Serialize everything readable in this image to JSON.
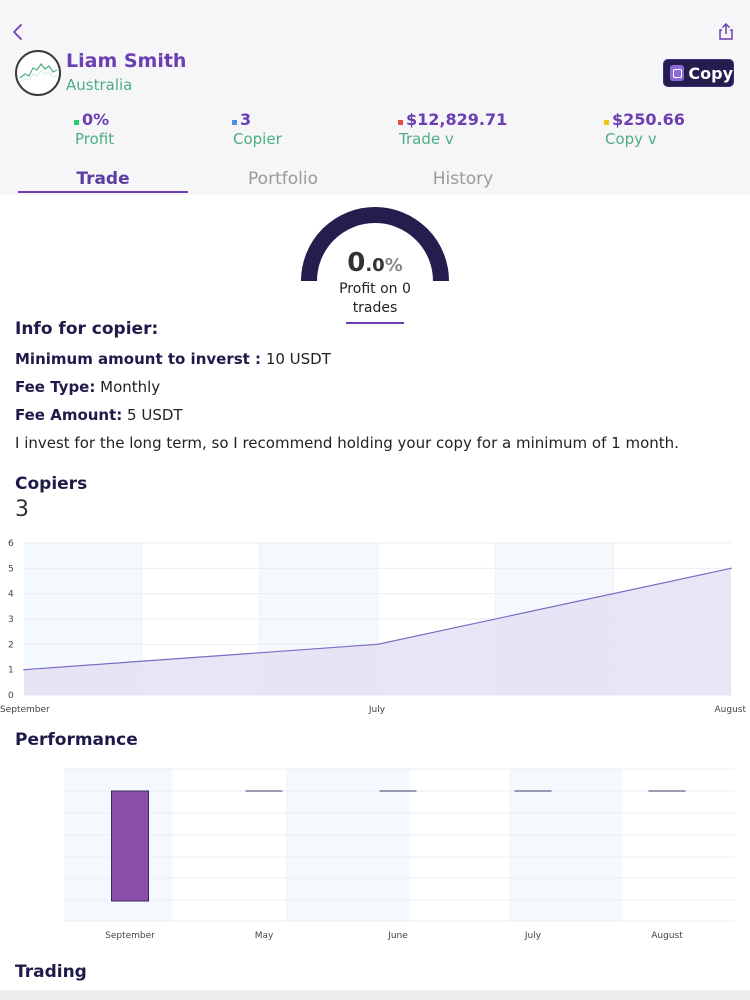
{
  "profile": {
    "name": "Liam Smith",
    "country": "Australia",
    "copy_label": "Copy"
  },
  "stats": [
    {
      "value": "0%",
      "label": "Profit",
      "color": "#2ecc71"
    },
    {
      "value": "3",
      "label": "Copier",
      "color": "#4a90e2"
    },
    {
      "value": "$12,829.71",
      "label": "Trade v",
      "color": "#e74c3c"
    },
    {
      "value": "$250.66",
      "label": "Copy v",
      "color": "#f1c40f"
    }
  ],
  "tabs": [
    {
      "label": "Trade",
      "active": true
    },
    {
      "label": "Portfolio",
      "active": false
    },
    {
      "label": "History",
      "active": false
    }
  ],
  "gauge": {
    "int": "0",
    "dec": ".0",
    "pct": "%",
    "caption_line1": "Profit on 0",
    "caption_line2": "trades"
  },
  "info": {
    "title": "Info for copier:",
    "min_key": "Minimum amount to inverst :",
    "min_val": " 10 USDT",
    "fee_type_key": "Fee Type:",
    "fee_type_val": " Monthly",
    "fee_amount_key": "Fee Amount:",
    "fee_amount_val": " 5 USDT",
    "note": "I invest for the long term, so I recommend holding your copy for a minimum of 1 month."
  },
  "copiers": {
    "title": "Copiers",
    "count": "3"
  },
  "performance": {
    "title": "Performance"
  },
  "trading": {
    "title": "Trading"
  },
  "chart_data": [
    {
      "type": "area",
      "x": [
        "September",
        "July",
        "August"
      ],
      "values": [
        1,
        2,
        5
      ],
      "ylim": [
        0,
        6
      ],
      "yticks": [
        "0",
        "1",
        "2",
        "3",
        "4",
        "5",
        "6"
      ],
      "color": "#7b6bc4",
      "fill": "#e4e0f5"
    },
    {
      "type": "bar",
      "categories": [
        "September",
        "May",
        "June",
        "July",
        "August"
      ],
      "values": [
        -1,
        0,
        0,
        0,
        0
      ],
      "color": "#8b4fab"
    }
  ]
}
